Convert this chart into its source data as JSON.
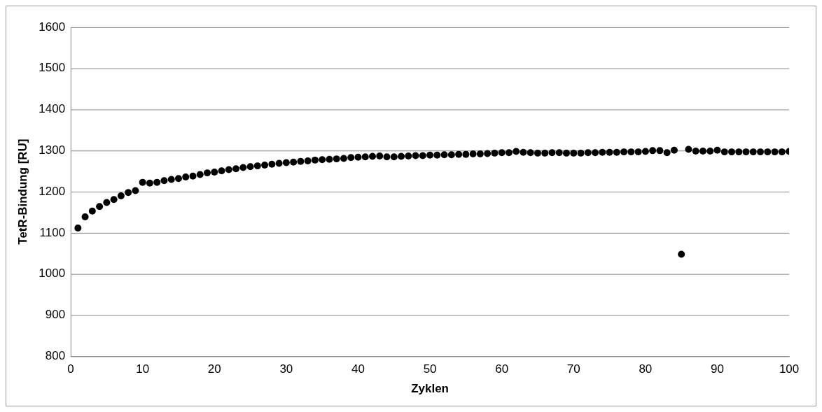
{
  "chart_data": {
    "type": "scatter",
    "xlabel": "Zyklen",
    "ylabel": "TetR-Bindung [RU]",
    "x": [
      1,
      2,
      3,
      4,
      5,
      6,
      7,
      8,
      9,
      10,
      11,
      12,
      13,
      14,
      15,
      16,
      17,
      18,
      19,
      20,
      21,
      22,
      23,
      24,
      25,
      26,
      27,
      28,
      29,
      30,
      31,
      32,
      33,
      34,
      35,
      36,
      37,
      38,
      39,
      40,
      41,
      42,
      43,
      44,
      45,
      46,
      47,
      48,
      49,
      50,
      51,
      52,
      53,
      54,
      55,
      56,
      57,
      58,
      59,
      60,
      61,
      62,
      63,
      64,
      65,
      66,
      67,
      68,
      69,
      70,
      71,
      72,
      73,
      74,
      75,
      76,
      77,
      78,
      79,
      80,
      81,
      82,
      83,
      84,
      85,
      86,
      87,
      88,
      89,
      90,
      91,
      92,
      93,
      94,
      95,
      96,
      97,
      98,
      99,
      100
    ],
    "series": [
      {
        "color": "#000000",
        "values": [
          1112,
          1139,
          1153,
          1164,
          1174,
          1181,
          1190,
          1198,
          1203,
          1223,
          1221,
          1223,
          1227,
          1230,
          1232,
          1236,
          1238,
          1242,
          1246,
          1248,
          1251,
          1254,
          1256,
          1259,
          1261,
          1263,
          1265,
          1267,
          1269,
          1271,
          1272,
          1274,
          1275,
          1277,
          1278,
          1279,
          1280,
          1281,
          1283,
          1284,
          1285,
          1286,
          1287,
          1285,
          1285,
          1286,
          1287,
          1288,
          1288,
          1289,
          1289,
          1290,
          1290,
          1291,
          1291,
          1292,
          1292,
          1293,
          1294,
          1295,
          1295,
          1298,
          1296,
          1295,
          1294,
          1294,
          1295,
          1295,
          1294,
          1294,
          1294,
          1295,
          1295,
          1296,
          1296,
          1296,
          1297,
          1297,
          1297,
          1298,
          1300,
          1300,
          1295,
          1301,
          1048,
          1303,
          1299,
          1299,
          1299,
          1301,
          1297,
          1297,
          1297,
          1297,
          1297,
          1297,
          1297,
          1297,
          1297,
          1298
        ]
      }
    ],
    "xlim": [
      0,
      100
    ],
    "xticks": [
      0,
      10,
      20,
      30,
      40,
      50,
      60,
      70,
      80,
      90,
      100
    ],
    "ylim": [
      800,
      1600
    ],
    "yticks": [
      800,
      900,
      1000,
      1100,
      1200,
      1300,
      1400,
      1500,
      1600
    ],
    "grid": "y",
    "legend": false,
    "marker": "circle"
  }
}
